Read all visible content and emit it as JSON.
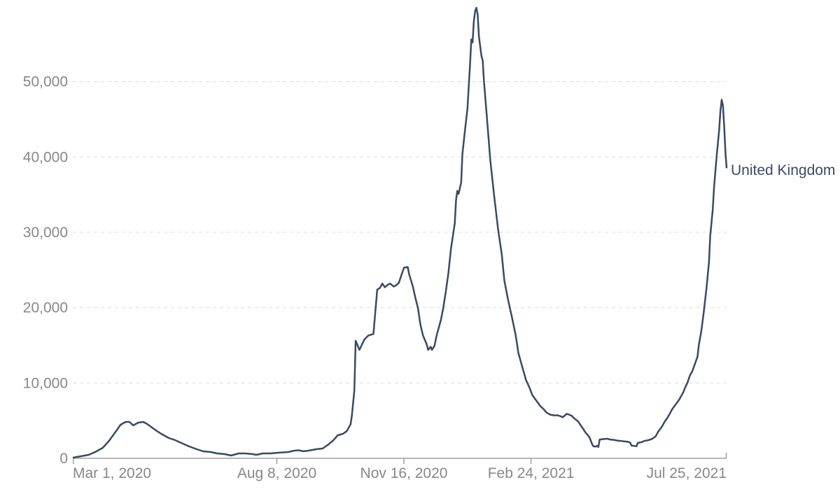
{
  "colors": {
    "background": "#ffffff",
    "series": "#3a4a63",
    "tick_label": "#888888",
    "axis": "#9e9e9e",
    "gridline": "#dcdcdc"
  },
  "chart_data": {
    "type": "line",
    "title": "",
    "legend_position": "end-of-line label",
    "grid": "horizontal dashed gridlines",
    "x_axis": {
      "epoch_date": "2020-03-01",
      "unit": "days since 2020-03-01",
      "range_days": [
        0,
        514
      ],
      "ticks": [
        {
          "label": "Mar 1, 2020",
          "day": 0
        },
        {
          "label": "Aug 8, 2020",
          "day": 160
        },
        {
          "label": "Nov 16, 2020",
          "day": 260
        },
        {
          "label": "Feb 24, 2021",
          "day": 360
        },
        {
          "label": "Jul 25, 2021",
          "day": 511
        }
      ]
    },
    "y_axis": {
      "range": [
        0,
        60000
      ],
      "ticks": [
        {
          "label": "0",
          "value": 0
        },
        {
          "label": "10,000",
          "value": 10000
        },
        {
          "label": "20,000",
          "value": 20000
        },
        {
          "label": "30,000",
          "value": 30000
        },
        {
          "label": "40,000",
          "value": 40000
        },
        {
          "label": "50,000",
          "value": 50000
        }
      ]
    },
    "series": [
      {
        "name": "United Kingdom",
        "color": "#3a4a63",
        "points": [
          [
            0,
            100
          ],
          [
            6,
            280
          ],
          [
            12,
            465
          ],
          [
            17,
            840
          ],
          [
            23,
            1390
          ],
          [
            28,
            2320
          ],
          [
            34,
            3715
          ],
          [
            37,
            4460
          ],
          [
            41,
            4830
          ],
          [
            44,
            4830
          ],
          [
            47,
            4370
          ],
          [
            51,
            4740
          ],
          [
            55,
            4830
          ],
          [
            58,
            4550
          ],
          [
            64,
            3810
          ],
          [
            69,
            3250
          ],
          [
            75,
            2690
          ],
          [
            80,
            2415
          ],
          [
            86,
            1950
          ],
          [
            91,
            1580
          ],
          [
            97,
            1210
          ],
          [
            102,
            930
          ],
          [
            108,
            835
          ],
          [
            113,
            650
          ],
          [
            119,
            560
          ],
          [
            124,
            370
          ],
          [
            130,
            650
          ],
          [
            135,
            650
          ],
          [
            141,
            560
          ],
          [
            144,
            465
          ],
          [
            149,
            650
          ],
          [
            155,
            650
          ],
          [
            161,
            745
          ],
          [
            169,
            835
          ],
          [
            174,
            1020
          ],
          [
            177,
            1070
          ],
          [
            181,
            930
          ],
          [
            185,
            1020
          ],
          [
            191,
            1210
          ],
          [
            196,
            1300
          ],
          [
            200,
            1765
          ],
          [
            204,
            2320
          ],
          [
            208,
            3065
          ],
          [
            212,
            3250
          ],
          [
            215,
            3600
          ],
          [
            218,
            4500
          ],
          [
            219,
            5600
          ],
          [
            221,
            9000
          ],
          [
            222,
            15600
          ],
          [
            225,
            14400
          ],
          [
            227,
            15100
          ],
          [
            229,
            15800
          ],
          [
            232,
            16300
          ],
          [
            236,
            16500
          ],
          [
            237,
            18500
          ],
          [
            239,
            22400
          ],
          [
            241,
            22600
          ],
          [
            243,
            23200
          ],
          [
            245,
            22700
          ],
          [
            247,
            23000
          ],
          [
            249,
            23200
          ],
          [
            252,
            22800
          ],
          [
            254,
            23000
          ],
          [
            256,
            23300
          ],
          [
            258,
            24300
          ],
          [
            260,
            25300
          ],
          [
            263,
            25400
          ],
          [
            264,
            24500
          ],
          [
            267,
            22800
          ],
          [
            269,
            21300
          ],
          [
            271,
            20000
          ],
          [
            273,
            17700
          ],
          [
            275,
            16300
          ],
          [
            278,
            15100
          ],
          [
            279,
            14400
          ],
          [
            281,
            14800
          ],
          [
            282,
            14400
          ],
          [
            284,
            14900
          ],
          [
            286,
            16500
          ],
          [
            289,
            18300
          ],
          [
            291,
            20000
          ],
          [
            293,
            22200
          ],
          [
            295,
            24600
          ],
          [
            297,
            27800
          ],
          [
            300,
            31200
          ],
          [
            301,
            34300
          ],
          [
            302,
            35500
          ],
          [
            303,
            35100
          ],
          [
            305,
            36600
          ],
          [
            306,
            40400
          ],
          [
            308,
            43500
          ],
          [
            310,
            46400
          ],
          [
            311,
            49500
          ],
          [
            312,
            52300
          ],
          [
            313,
            55600
          ],
          [
            314,
            55200
          ],
          [
            315,
            58000
          ],
          [
            316,
            59300
          ],
          [
            317,
            59800
          ],
          [
            318,
            58900
          ],
          [
            319,
            56000
          ],
          [
            321,
            53400
          ],
          [
            322,
            52800
          ],
          [
            323,
            50000
          ],
          [
            325,
            45800
          ],
          [
            328,
            39500
          ],
          [
            331,
            34800
          ],
          [
            334,
            30500
          ],
          [
            337,
            27000
          ],
          [
            339,
            23600
          ],
          [
            342,
            21000
          ],
          [
            345,
            18700
          ],
          [
            348,
            16300
          ],
          [
            350,
            14000
          ],
          [
            353,
            12200
          ],
          [
            356,
            10400
          ],
          [
            359,
            9300
          ],
          [
            361,
            8400
          ],
          [
            364,
            7700
          ],
          [
            367,
            7000
          ],
          [
            370,
            6500
          ],
          [
            372,
            6100
          ],
          [
            375,
            5800
          ],
          [
            378,
            5700
          ],
          [
            381,
            5700
          ],
          [
            383,
            5600
          ],
          [
            385,
            5450
          ],
          [
            388,
            5900
          ],
          [
            390,
            5800
          ],
          [
            392,
            5650
          ],
          [
            394,
            5300
          ],
          [
            397,
            4900
          ],
          [
            399,
            4400
          ],
          [
            401,
            3900
          ],
          [
            403,
            3400
          ],
          [
            405,
            3000
          ],
          [
            406,
            2800
          ],
          [
            408,
            1900
          ],
          [
            409,
            1600
          ],
          [
            411,
            1550
          ],
          [
            412,
            1650
          ],
          [
            413,
            1500
          ],
          [
            414,
            2500
          ],
          [
            417,
            2550
          ],
          [
            420,
            2600
          ],
          [
            422,
            2500
          ],
          [
            425,
            2450
          ],
          [
            428,
            2350
          ],
          [
            431,
            2300
          ],
          [
            433,
            2250
          ],
          [
            436,
            2200
          ],
          [
            438,
            2100
          ],
          [
            439,
            1700
          ],
          [
            441,
            1650
          ],
          [
            443,
            1600
          ],
          [
            444,
            2050
          ],
          [
            447,
            2150
          ],
          [
            449,
            2300
          ],
          [
            452,
            2400
          ],
          [
            455,
            2550
          ],
          [
            458,
            2900
          ],
          [
            460,
            3530
          ],
          [
            463,
            4200
          ],
          [
            465,
            4830
          ],
          [
            467,
            5300
          ],
          [
            469,
            5860
          ],
          [
            471,
            6500
          ],
          [
            473,
            6970
          ],
          [
            475,
            7400
          ],
          [
            477,
            7900
          ],
          [
            480,
            8830
          ],
          [
            481,
            9300
          ],
          [
            483,
            10000
          ],
          [
            485,
            11000
          ],
          [
            487,
            11600
          ],
          [
            489,
            12550
          ],
          [
            491,
            13500
          ],
          [
            492,
            15050
          ],
          [
            494,
            16900
          ],
          [
            496,
            19500
          ],
          [
            498,
            22500
          ],
          [
            500,
            26000
          ],
          [
            501,
            29500
          ],
          [
            503,
            33000
          ],
          [
            504,
            36000
          ],
          [
            506,
            40000
          ],
          [
            508,
            43500
          ],
          [
            509,
            46000
          ],
          [
            510,
            47600
          ],
          [
            511,
            46800
          ],
          [
            512,
            44000
          ],
          [
            513,
            40500
          ],
          [
            514,
            38600
          ]
        ]
      }
    ]
  }
}
